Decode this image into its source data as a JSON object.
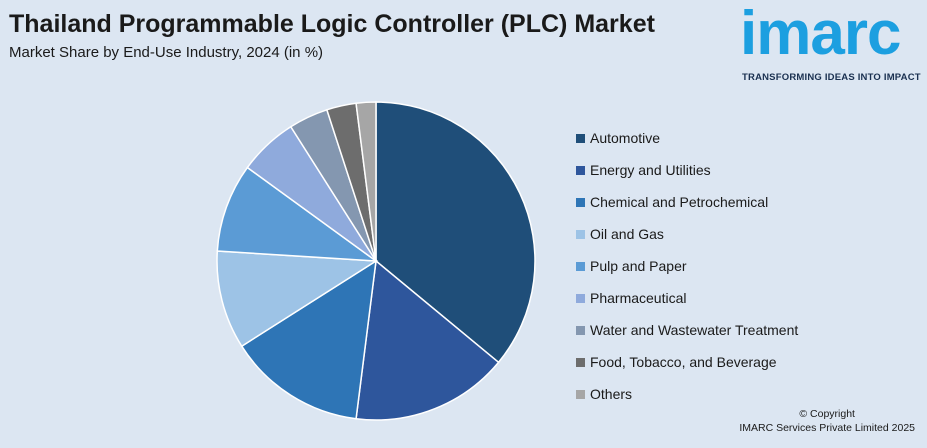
{
  "header": {
    "title": "Thailand Programmable Logic Controller (PLC) Market",
    "subtitle": "Market Share by End-Use Industry, 2024 (in %)"
  },
  "logo": {
    "text": "imarc",
    "tagline": "TRANSFORMING IDEAS INTO IMPACT",
    "color": "#1c9fe0"
  },
  "footer": {
    "copyright": "© Copyright",
    "company": "IMARC Services Private Limited 2025"
  },
  "chart_data": {
    "type": "pie",
    "legend_position": "right",
    "slices": [
      {
        "label": "Automotive",
        "value": 36,
        "color": "#1f4e79"
      },
      {
        "label": "Energy and Utilities",
        "value": 16,
        "color": "#2e569c"
      },
      {
        "label": "Chemical and Petrochemical",
        "value": 14,
        "color": "#2e75b6"
      },
      {
        "label": "Oil and Gas",
        "value": 10,
        "color": "#9dc3e6"
      },
      {
        "label": "Pulp and Paper",
        "value": 9,
        "color": "#5b9bd5"
      },
      {
        "label": "Pharmaceutical",
        "value": 6,
        "color": "#8faadc"
      },
      {
        "label": "Water and Wastewater Treatment",
        "value": 4,
        "color": "#8497b0"
      },
      {
        "label": "Food, Tobacco, and Beverage",
        "value": 3,
        "color": "#6d6d6d"
      },
      {
        "label": "Others",
        "value": 2,
        "color": "#a6a6a6"
      }
    ]
  }
}
